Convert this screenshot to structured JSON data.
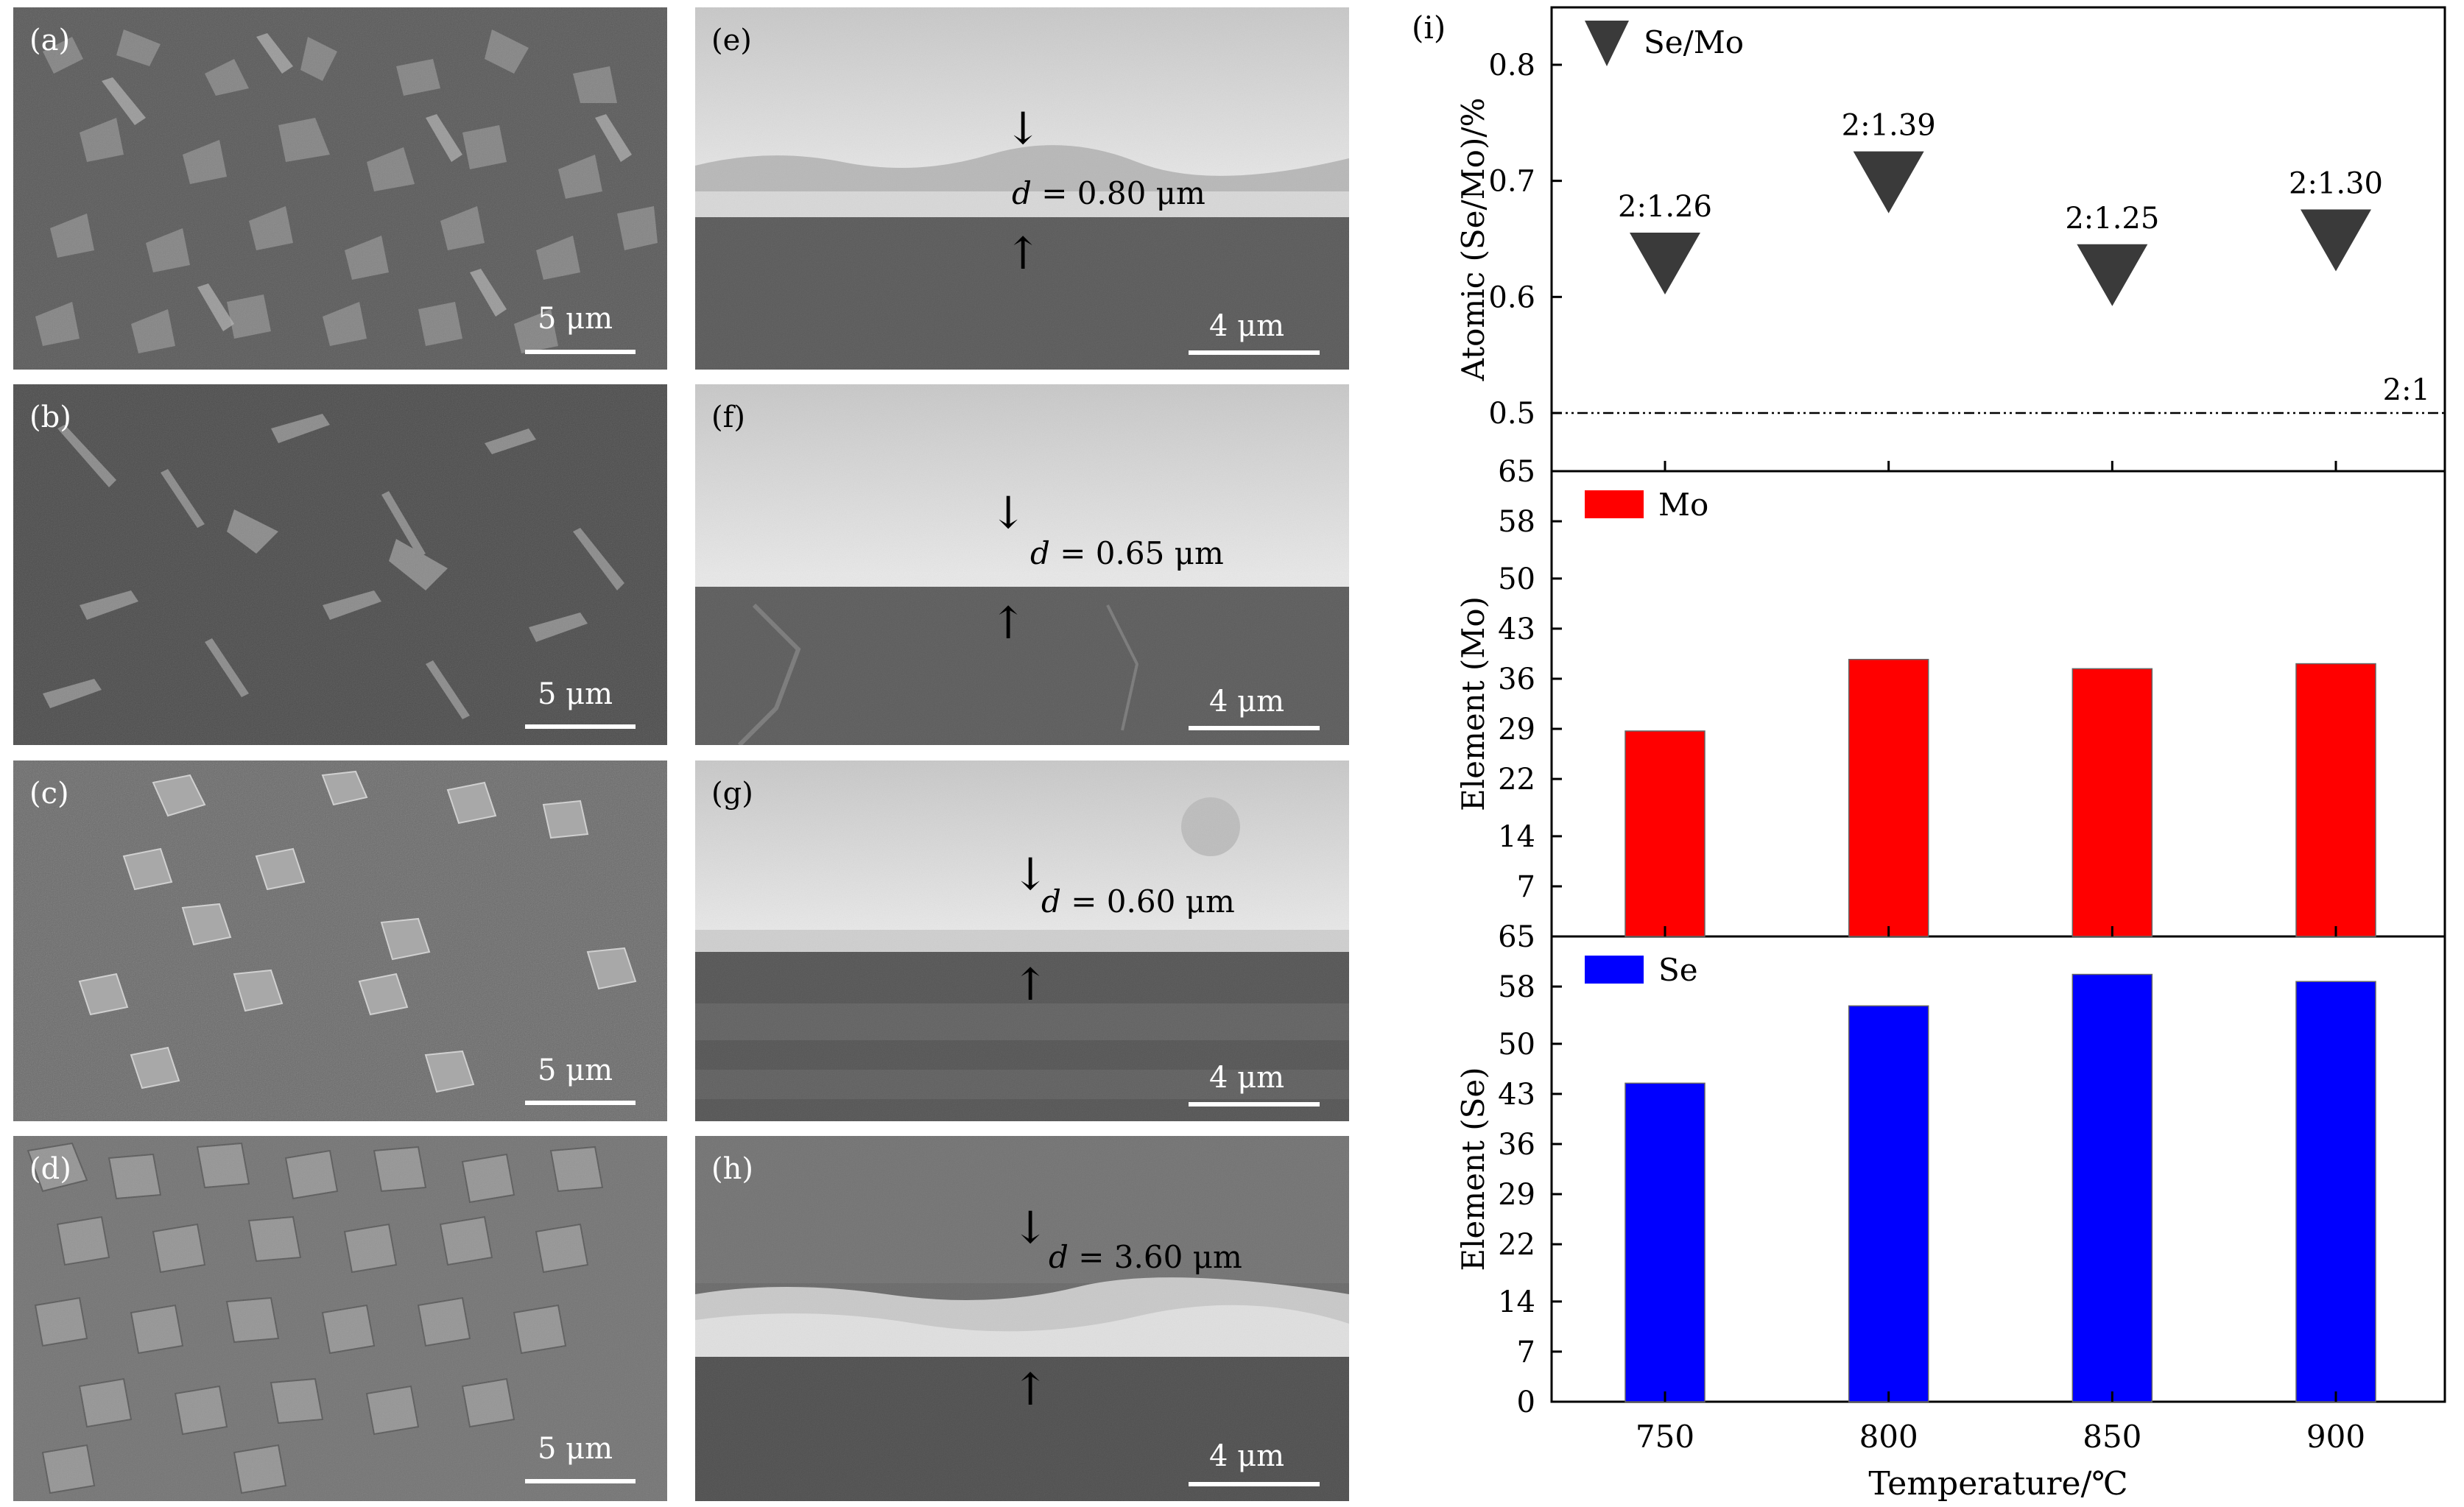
{
  "colors": {
    "se_mo_marker": "#3a3a3a",
    "mo_bar": "#ff0000",
    "se_bar": "#0000ff"
  },
  "panels_left": [
    {
      "label": "(a)",
      "scale": "5 μm"
    },
    {
      "label": "(b)",
      "scale": "5 μm"
    },
    {
      "label": "(c)",
      "scale": "5 μm"
    },
    {
      "label": "(d)",
      "scale": "5 μm"
    }
  ],
  "panels_mid": [
    {
      "label": "(e)",
      "scale": "4 μm",
      "d_symbol": "d",
      "thickness": "= 0.80 μm"
    },
    {
      "label": "(f)",
      "scale": "4 μm",
      "d_symbol": "d",
      "thickness": "= 0.65 μm"
    },
    {
      "label": "(g)",
      "scale": "4 μm",
      "d_symbol": "d",
      "thickness": "= 0.60 μm"
    },
    {
      "label": "(h)",
      "scale": "4 μm",
      "d_symbol": "d",
      "thickness": "= 3.60 μm"
    }
  ],
  "chart_data": [
    {
      "type": "scatter",
      "panel_label": "(i)",
      "legend": "Se/Mo",
      "x": [
        750,
        800,
        850,
        900
      ],
      "y": [
        0.63,
        0.7,
        0.62,
        0.65
      ],
      "point_labels": [
        "2:1.26",
        "2:1.39",
        "2:1.25",
        "2:1.30"
      ],
      "ylabel": "Atomic (Se/Mo)/%",
      "yticks": [
        "0.5",
        "0.6",
        "0.7",
        "0.8"
      ],
      "ylim": [
        0.45,
        0.85
      ],
      "reference_line": {
        "y": 0.5,
        "label": "2:1"
      }
    },
    {
      "type": "bar",
      "legend": "Mo",
      "categories": [
        "750",
        "800",
        "850",
        "900"
      ],
      "values": [
        28.7,
        38.7,
        37.4,
        38.1
      ],
      "ylabel": "Element (Mo)",
      "yticks": [
        "7",
        "14",
        "22",
        "29",
        "36",
        "43",
        "50",
        "58",
        "65"
      ],
      "ylim": [
        0,
        65
      ]
    },
    {
      "type": "bar",
      "legend": "Se",
      "categories": [
        "750",
        "800",
        "850",
        "900"
      ],
      "values": [
        44.5,
        55.3,
        59.7,
        58.7
      ],
      "ylabel": "Element (Se)",
      "yticks": [
        "0",
        "7",
        "14",
        "22",
        "29",
        "36",
        "43",
        "50",
        "58",
        "65"
      ],
      "ylim": [
        0,
        65
      ],
      "xlabel": "Temperature/℃",
      "xticks": [
        "750",
        "800",
        "850",
        "900"
      ]
    }
  ]
}
